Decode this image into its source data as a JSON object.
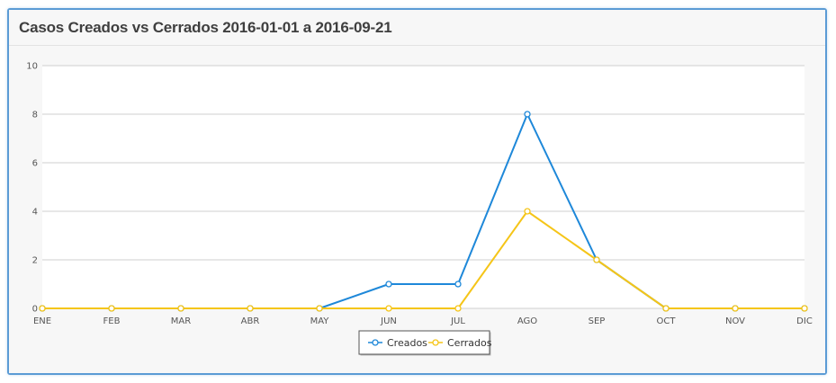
{
  "panel": {
    "title": "Casos Creados vs Cerrados 2016-01-01 a 2016-09-21"
  },
  "colors": {
    "creados": "#1e88d9",
    "cerrados": "#f5c518",
    "grid": "#cfcfcf",
    "frame": "#5b9bd5"
  },
  "chart_data": {
    "type": "line",
    "title": "",
    "xlabel": "",
    "ylabel": "",
    "categories": [
      "ENE",
      "FEB",
      "MAR",
      "ABR",
      "MAY",
      "JUN",
      "JUL",
      "AGO",
      "SEP",
      "OCT",
      "NOV",
      "DIC"
    ],
    "ylim": [
      0,
      10
    ],
    "yticks": [
      0,
      2,
      4,
      6,
      8,
      10
    ],
    "grid": true,
    "legend_position": "bottom-center",
    "series": [
      {
        "name": "Creados",
        "color": "#1e88d9",
        "values": [
          0,
          0,
          0,
          0,
          0,
          1,
          1,
          8,
          2,
          0,
          0,
          0
        ]
      },
      {
        "name": "Cerrados",
        "color": "#f5c518",
        "values": [
          0,
          0,
          0,
          0,
          0,
          0,
          0,
          4,
          2,
          0,
          0,
          0
        ]
      }
    ]
  }
}
